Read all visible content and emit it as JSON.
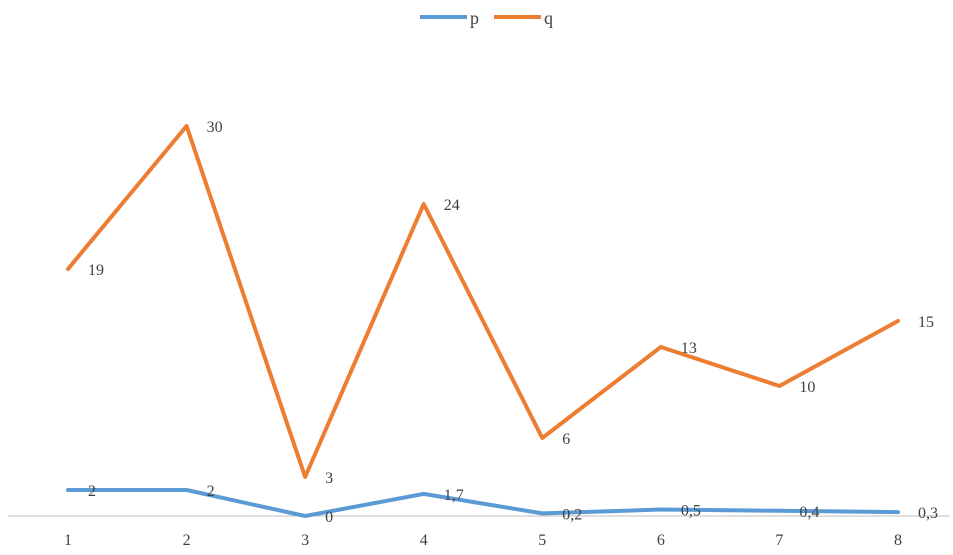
{
  "chart_data": {
    "type": "line",
    "title": "",
    "xlabel": "",
    "ylabel": "",
    "categories": [
      "1",
      "2",
      "3",
      "4",
      "5",
      "6",
      "7",
      "8"
    ],
    "ylim": [
      0,
      30
    ],
    "grid": false,
    "legend_position": "top",
    "series": [
      {
        "name": "p",
        "color": "#5B9BD5",
        "values": [
          2,
          2,
          0,
          1.7,
          0.2,
          0.5,
          0.4,
          0.3
        ],
        "labels": [
          "2",
          "2",
          "0",
          "1,7",
          "0,2",
          "0,5",
          "0,4",
          "0,3"
        ]
      },
      {
        "name": "q",
        "color": "#ED7D31",
        "values": [
          19,
          30,
          3,
          24,
          6,
          13,
          10,
          15
        ],
        "labels": [
          "19",
          "30",
          "3",
          "24",
          "6",
          "13",
          "10",
          "15"
        ]
      }
    ]
  }
}
